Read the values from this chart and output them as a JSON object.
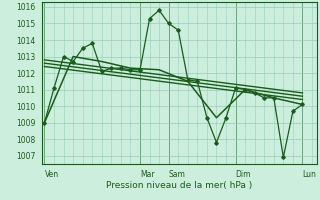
{
  "background_color": "#cceedd",
  "grid_color": "#99ccbb",
  "line_color": "#1a5c1a",
  "marker_color": "#1a5c1a",
  "xlabel": "Pression niveau de la mer( hPa )",
  "ylim": [
    1006.5,
    1016.3
  ],
  "ytick_values": [
    1007,
    1008,
    1009,
    1010,
    1011,
    1012,
    1013,
    1014,
    1015,
    1016
  ],
  "x_tick_labels": [
    "Ven",
    "Mar",
    "Sam",
    "Dim",
    "Lun"
  ],
  "x_tick_positions": [
    0,
    10,
    13,
    20,
    27
  ],
  "xlim": [
    -0.3,
    28.5
  ],
  "series1_x": [
    0,
    1,
    2,
    3,
    4,
    5,
    6,
    7,
    8,
    9,
    10,
    11,
    12,
    13,
    14,
    15,
    16,
    17,
    18,
    19,
    20,
    21,
    22,
    23,
    24,
    25,
    26,
    27
  ],
  "series1_y": [
    1009.0,
    1011.1,
    1013.0,
    1012.7,
    1013.5,
    1013.8,
    1012.1,
    1012.3,
    1012.3,
    1012.2,
    1012.2,
    1015.3,
    1015.8,
    1015.0,
    1014.6,
    1011.6,
    1011.5,
    1009.3,
    1007.8,
    1009.3,
    1011.1,
    1011.0,
    1010.8,
    1010.5,
    1010.5,
    1006.9,
    1009.7,
    1010.1
  ],
  "series2_x": [
    0,
    3,
    6,
    9,
    12,
    15,
    18,
    21,
    24,
    27
  ],
  "series2_y": [
    1009.0,
    1013.0,
    1012.7,
    1012.3,
    1012.2,
    1011.5,
    1009.3,
    1011.0,
    1010.5,
    1010.1
  ],
  "series3_x": [
    0,
    27
  ],
  "series3_y": [
    1012.8,
    1010.8
  ],
  "series4_x": [
    0,
    27
  ],
  "series4_y": [
    1012.6,
    1010.6
  ],
  "series5_x": [
    0,
    27
  ],
  "series5_y": [
    1012.4,
    1010.4
  ]
}
